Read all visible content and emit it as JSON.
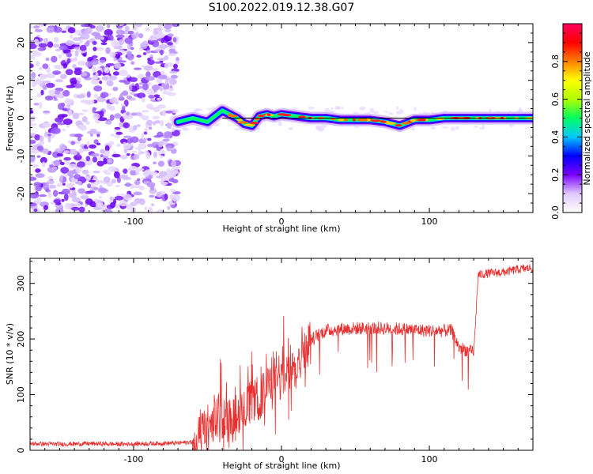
{
  "title": "S100.2022.019.12.38.G07",
  "chart_data": [
    {
      "type": "heatmap",
      "xlabel": "Height of straight line (km)",
      "ylabel": "Frequency (Hz)",
      "xlim": [
        -170,
        170
      ],
      "ylim": [
        -25,
        25
      ],
      "x_ticks": [
        -100,
        0,
        100
      ],
      "y_ticks": [
        -20,
        -10,
        0,
        10,
        20
      ],
      "colorbar": {
        "label": "Normalized spectral amplitude",
        "range": [
          0,
          1
        ],
        "ticks": [
          0.0,
          0.2,
          0.4,
          0.6,
          0.8
        ],
        "tick_labels": [
          "0.0",
          "0.2",
          "0.4",
          "0.6",
          "0.8"
        ],
        "colormap": [
          "#ffffff",
          "#e0c8ff",
          "#7a00ff",
          "#0000ff",
          "#00c8ff",
          "#00ff60",
          "#b0ff00",
          "#ffff00",
          "#ff8000",
          "#ff0000",
          "#ff0060"
        ]
      },
      "noise_region_x": [
        -170,
        -70
      ],
      "ridge": {
        "x": [
          -70,
          -60,
          -55,
          -50,
          -45,
          -40,
          -35,
          -30,
          -25,
          -20,
          -15,
          -10,
          -5,
          0,
          10,
          20,
          30,
          40,
          50,
          60,
          70,
          80,
          90,
          100,
          110,
          120,
          130,
          140,
          150,
          160,
          170
        ],
        "y": [
          -1,
          0,
          -0.5,
          -1,
          0.5,
          2,
          1,
          0,
          -1.5,
          -2,
          0.5,
          1,
          0.5,
          1,
          0.5,
          0,
          0,
          -0.5,
          -0.5,
          -0.5,
          -1,
          -2,
          -0.5,
          -0.5,
          0,
          0,
          0,
          0,
          0,
          0,
          0
        ],
        "peak_x_range": [
          -40,
          170
        ]
      },
      "reference_line": {
        "x": [
          -40,
          170
        ],
        "y": 0
      }
    },
    {
      "type": "line",
      "xlabel": "Height of straight line (km)",
      "ylabel": "SNR (10 * v/v)",
      "xlim": [
        -170,
        170
      ],
      "ylim": [
        0,
        345
      ],
      "x_ticks": [
        -100,
        0,
        100
      ],
      "y_ticks": [
        0,
        100,
        200,
        300
      ],
      "color": "#e83030",
      "series": [
        {
          "x": [
            -170,
            -150,
            -130,
            -110,
            -90,
            -70,
            -60,
            -55,
            -50,
            -45,
            -40,
            -35,
            -30,
            -25,
            -20,
            -15,
            -10,
            -5,
            0,
            5,
            10,
            15,
            20,
            25,
            30,
            40,
            60,
            80,
            100,
            115,
            120,
            125,
            130,
            133,
            140,
            150,
            160,
            170
          ],
          "y": [
            12,
            11,
            12,
            11,
            12,
            13,
            15,
            28,
            40,
            55,
            62,
            60,
            68,
            78,
            85,
            95,
            110,
            125,
            135,
            150,
            165,
            185,
            198,
            208,
            215,
            218,
            220,
            218,
            215,
            215,
            185,
            180,
            175,
            315,
            318,
            320,
            325,
            328
          ]
        }
      ]
    }
  ]
}
